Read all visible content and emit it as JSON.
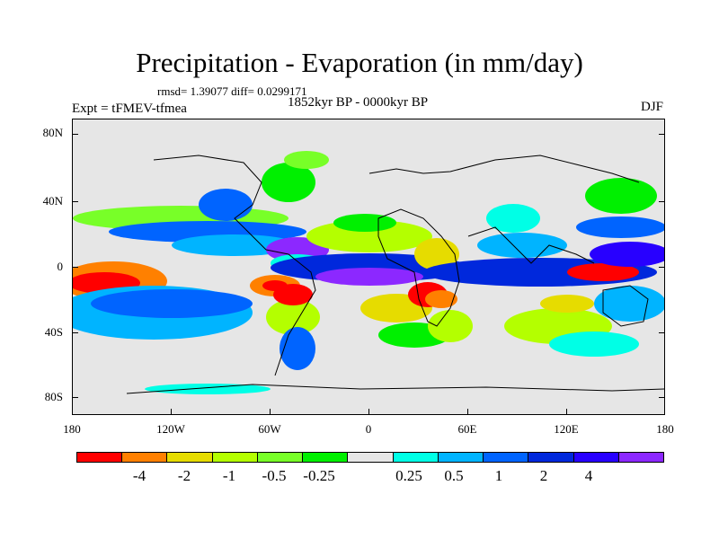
{
  "title": "Precipitation - Evaporation (in mm/day)",
  "stats": "rmsd= 1.39077  diff= 0.0299171",
  "period": "1852kyr BP - 0000kyr BP",
  "experiment": "Expt = tFMEV-tfmea",
  "season": "DJF",
  "map": {
    "projection": "cylindrical equidistant",
    "lon_range": [
      -180,
      180
    ],
    "lat_range": [
      -90,
      90
    ],
    "lat_ticks": [
      "80N",
      "40N",
      "0",
      "40S",
      "80S"
    ],
    "lon_ticks": [
      "180",
      "120W",
      "60W",
      "0",
      "60E",
      "120E",
      "180"
    ],
    "background_color": "#e6e6e6"
  },
  "colorbar": {
    "colors": [
      "#ff0000",
      "#ff8000",
      "#e6dc00",
      "#b4ff00",
      "#78ff28",
      "#00f000",
      "#e6e6e6",
      "#00ffe6",
      "#00b4ff",
      "#0064ff",
      "#0028dc",
      "#2800ff",
      "#8c28ff"
    ],
    "labels": [
      "-4",
      "-2",
      "-1",
      "-0.5",
      "-0.25",
      "0.25",
      "0.5",
      "1",
      "2",
      "4"
    ]
  }
}
